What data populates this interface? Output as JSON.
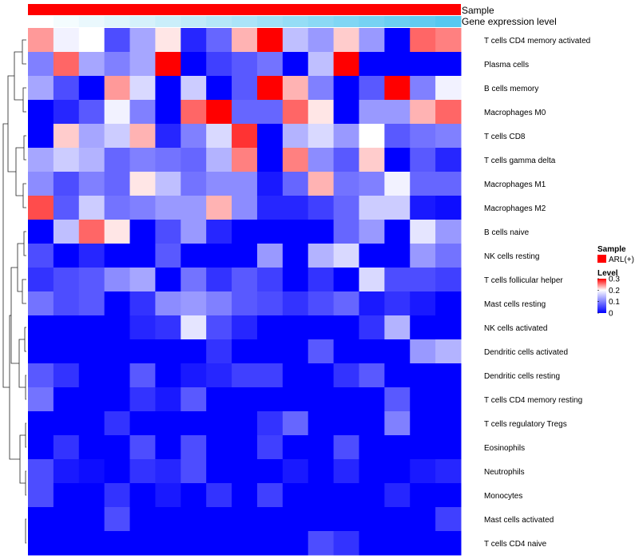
{
  "chart_data": {
    "type": "heatmap",
    "title": "",
    "annotation_tracks": [
      {
        "name": "Sample",
        "color": "#ff0000"
      },
      {
        "name": "Gene expression level",
        "gradient": [
          "#ffffff",
          "#56c8f0"
        ]
      }
    ],
    "legend": {
      "sample_title": "Sample",
      "sample_entries": [
        {
          "label": "ARL(+)",
          "color": "#ff0000"
        }
      ],
      "level_title": "Level",
      "level_ticks": [
        {
          "value": 0.3,
          "label": "0.3"
        },
        {
          "value": 0.2,
          "label": "0.2"
        },
        {
          "value": 0.1,
          "label": "0.1"
        },
        {
          "value": 0,
          "label": "0"
        }
      ]
    },
    "color_scale": {
      "min": 0,
      "mid": 0.2,
      "max": 0.3,
      "low": "#0000ff",
      "midColor": "#ffffff",
      "high": "#ff0000"
    },
    "rows": [
      "T cells CD4 memory activated",
      "Plasma cells",
      "B cells memory",
      "Macrophages M0",
      "T cells CD8",
      "T cells gamma delta",
      "Macrophages M1",
      "Macrophages M2",
      "B cells naive",
      "NK cells resting",
      "T cells follicular helper",
      "Mast cells resting",
      "NK cells activated",
      "Dendritic cells activated",
      "Dendritic cells resting",
      "T cells CD4 memory resting",
      "T cells regulatory  Tregs",
      "Eosinophils",
      "Neutrophils",
      "Monocytes",
      "Mast cells activated",
      "T cells CD4 naive"
    ],
    "values": [
      [
        0.24,
        0.19,
        0.2,
        0.06,
        0.13,
        0.21,
        0.03,
        0.08,
        0.23,
        0.3,
        0.15,
        0.12,
        0.22,
        0.12,
        0.0,
        0.26,
        0.25
      ],
      [
        0.1,
        0.26,
        0.13,
        0.1,
        0.13,
        0.3,
        0.0,
        0.05,
        0.07,
        0.09,
        0.0,
        0.15,
        0.3,
        0.0,
        0.0,
        0.0,
        0.0
      ],
      [
        0.13,
        0.06,
        0.0,
        0.24,
        0.17,
        0.0,
        0.16,
        0.0,
        0.07,
        0.3,
        0.23,
        0.1,
        0.0,
        0.07,
        0.3,
        0.1,
        0.19
      ],
      [
        0.0,
        0.03,
        0.07,
        0.19,
        0.1,
        0.0,
        0.26,
        0.3,
        0.08,
        0.08,
        0.26,
        0.21,
        0.0,
        0.12,
        0.12,
        0.23,
        0.26
      ],
      [
        0.0,
        0.22,
        0.13,
        0.16,
        0.23,
        0.03,
        0.1,
        0.17,
        0.28,
        0.0,
        0.14,
        0.17,
        0.12,
        0.2,
        0.07,
        0.09,
        0.1
      ],
      [
        0.13,
        0.16,
        0.14,
        0.08,
        0.1,
        0.09,
        0.08,
        0.14,
        0.25,
        0.0,
        0.25,
        0.11,
        0.07,
        0.22,
        0.0,
        0.07,
        0.03
      ],
      [
        0.11,
        0.06,
        0.1,
        0.08,
        0.21,
        0.15,
        0.09,
        0.11,
        0.11,
        0.02,
        0.08,
        0.23,
        0.09,
        0.1,
        0.19,
        0.08,
        0.08
      ],
      [
        0.27,
        0.07,
        0.16,
        0.09,
        0.1,
        0.12,
        0.12,
        0.23,
        0.11,
        0.03,
        0.03,
        0.05,
        0.08,
        0.16,
        0.16,
        0.02,
        0.01
      ],
      [
        0.0,
        0.15,
        0.26,
        0.21,
        0.0,
        0.06,
        0.12,
        0.03,
        0.0,
        0.0,
        0.0,
        0.0,
        0.08,
        0.12,
        0.0,
        0.18,
        0.12
      ],
      [
        0.06,
        0.0,
        0.03,
        0.0,
        0.0,
        0.07,
        0.0,
        0.0,
        0.0,
        0.12,
        0.0,
        0.14,
        0.17,
        0.0,
        0.0,
        0.12,
        0.09
      ],
      [
        0.04,
        0.06,
        0.07,
        0.11,
        0.13,
        0.0,
        0.09,
        0.04,
        0.07,
        0.05,
        0.0,
        0.04,
        0.0,
        0.17,
        0.06,
        0.06,
        0.05
      ],
      [
        0.09,
        0.06,
        0.07,
        0.0,
        0.04,
        0.11,
        0.12,
        0.1,
        0.07,
        0.06,
        0.04,
        0.06,
        0.08,
        0.02,
        0.04,
        0.02,
        0.0
      ],
      [
        0.0,
        0.0,
        0.0,
        0.0,
        0.03,
        0.04,
        0.18,
        0.06,
        0.03,
        0.0,
        0.0,
        0.0,
        0.0,
        0.04,
        0.14,
        0.0,
        0.0
      ],
      [
        0.0,
        0.0,
        0.0,
        0.0,
        0.0,
        0.0,
        0.0,
        0.04,
        0.0,
        0.0,
        0.0,
        0.07,
        0.0,
        0.0,
        0.0,
        0.12,
        0.14
      ],
      [
        0.07,
        0.04,
        0.0,
        0.0,
        0.07,
        0.0,
        0.02,
        0.03,
        0.05,
        0.05,
        0.0,
        0.0,
        0.04,
        0.07,
        0.0,
        0.0,
        0.0
      ],
      [
        0.09,
        0.0,
        0.0,
        0.0,
        0.04,
        0.02,
        0.07,
        0.0,
        0.0,
        0.0,
        0.0,
        0.0,
        0.0,
        0.0,
        0.07,
        0.0,
        0.0
      ],
      [
        0.0,
        0.0,
        0.0,
        0.04,
        0.0,
        0.0,
        0.0,
        0.0,
        0.0,
        0.04,
        0.08,
        0.0,
        0.0,
        0.0,
        0.1,
        0.0,
        0.0
      ],
      [
        0.0,
        0.04,
        0.0,
        0.0,
        0.06,
        0.0,
        0.06,
        0.0,
        0.0,
        0.05,
        0.0,
        0.0,
        0.06,
        0.0,
        0.0,
        0.0,
        0.0
      ],
      [
        0.06,
        0.02,
        0.01,
        0.0,
        0.04,
        0.03,
        0.06,
        0.0,
        0.0,
        0.0,
        0.02,
        0.0,
        0.03,
        0.0,
        0.0,
        0.02,
        0.03
      ],
      [
        0.06,
        0.0,
        0.0,
        0.04,
        0.0,
        0.02,
        0.0,
        0.04,
        0.0,
        0.05,
        0.0,
        0.0,
        0.0,
        0.0,
        0.03,
        0.0,
        0.0
      ],
      [
        0.0,
        0.0,
        0.0,
        0.06,
        0.0,
        0.0,
        0.0,
        0.0,
        0.0,
        0.0,
        0.0,
        0.0,
        0.0,
        0.0,
        0.0,
        0.0,
        0.05
      ],
      [
        0.0,
        0.0,
        0.0,
        0.0,
        0.0,
        0.0,
        0.0,
        0.0,
        0.0,
        0.0,
        0.0,
        0.06,
        0.04,
        0.0,
        0.0,
        0.0,
        0.0
      ]
    ]
  }
}
